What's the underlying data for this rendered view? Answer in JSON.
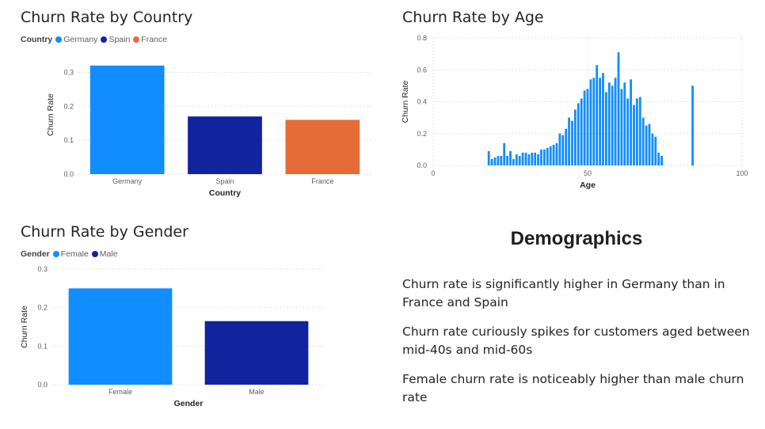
{
  "colors": {
    "germany": "#118dff",
    "spain": "#12239e",
    "france": "#e66c37",
    "female": "#118dff",
    "male": "#12239e",
    "age": "#118dff"
  },
  "country_chart": {
    "title": "Churn Rate by Country",
    "legend_title": "Country",
    "legend": [
      "Germany",
      "Spain",
      "France"
    ],
    "xlabel": "Country",
    "ylabel": "Churn Rate"
  },
  "age_chart": {
    "title": "Churn Rate by Age",
    "xlabel": "Age",
    "ylabel": "Churn Rate"
  },
  "gender_chart": {
    "title": "Churn Rate by Gender",
    "legend_title": "Gender",
    "legend": [
      "Female",
      "Male"
    ],
    "xlabel": "Gender",
    "ylabel": "Churn Rate"
  },
  "demographics": {
    "title": "Demographics",
    "points": [
      "Churn rate is significantly higher in Germany than in France and Spain",
      "Churn rate curiously spikes for customers aged between mid-40s and mid-60s",
      "Female churn rate is noticeably higher than male churn rate"
    ]
  },
  "chart_data": [
    {
      "type": "bar",
      "title": "Churn Rate by Country",
      "categories": [
        "Germany",
        "Spain",
        "France"
      ],
      "values": [
        0.32,
        0.17,
        0.16
      ],
      "xlabel": "Country",
      "ylabel": "Churn Rate",
      "ylim": [
        0,
        0.35
      ],
      "yticks": [
        0.0,
        0.1,
        0.2,
        0.3
      ],
      "ytick_labels": [
        "0.0",
        "0.1",
        "0.2",
        "0.3"
      ],
      "grid": true,
      "legend": "top-left"
    },
    {
      "type": "bar",
      "title": "Churn Rate by Age",
      "x": [
        18,
        19,
        20,
        21,
        22,
        23,
        24,
        25,
        26,
        27,
        28,
        29,
        30,
        31,
        32,
        33,
        34,
        35,
        36,
        37,
        38,
        39,
        40,
        41,
        42,
        43,
        44,
        45,
        46,
        47,
        48,
        49,
        50,
        51,
        52,
        53,
        54,
        55,
        56,
        57,
        58,
        59,
        60,
        61,
        62,
        63,
        64,
        65,
        66,
        67,
        68,
        69,
        70,
        71,
        72,
        73,
        74,
        84
      ],
      "values": [
        0.09,
        0.04,
        0.05,
        0.06,
        0.06,
        0.14,
        0.06,
        0.09,
        0.04,
        0.07,
        0.06,
        0.08,
        0.08,
        0.07,
        0.08,
        0.08,
        0.07,
        0.1,
        0.1,
        0.11,
        0.12,
        0.13,
        0.14,
        0.2,
        0.19,
        0.23,
        0.3,
        0.28,
        0.35,
        0.39,
        0.42,
        0.47,
        0.48,
        0.54,
        0.55,
        0.63,
        0.55,
        0.58,
        0.46,
        0.52,
        0.5,
        0.55,
        0.71,
        0.48,
        0.52,
        0.42,
        0.54,
        0.38,
        0.42,
        0.43,
        0.3,
        0.25,
        0.26,
        0.2,
        0.18,
        0.08,
        0.06,
        0.5
      ],
      "xlabel": "Age",
      "ylabel": "Churn Rate",
      "xlim": [
        0,
        100
      ],
      "ylim": [
        0,
        0.8
      ],
      "xticks": [
        0,
        50,
        100
      ],
      "xtick_labels": [
        "0",
        "50",
        "100"
      ],
      "yticks": [
        0.0,
        0.2,
        0.4,
        0.6,
        0.8
      ],
      "ytick_labels": [
        "0.0",
        "0.2",
        "0.4",
        "0.6",
        "0.8"
      ],
      "grid": true
    },
    {
      "type": "bar",
      "title": "Churn Rate by Gender",
      "categories": [
        "Female",
        "Male"
      ],
      "values": [
        0.25,
        0.165
      ],
      "xlabel": "Gender",
      "ylabel": "Churn Rate",
      "ylim": [
        0,
        0.3
      ],
      "yticks": [
        0.0,
        0.1,
        0.2,
        0.3
      ],
      "ytick_labels": [
        "0.0",
        "0.1",
        "0.2",
        "0.3"
      ],
      "grid": true,
      "legend": "top-left"
    }
  ]
}
